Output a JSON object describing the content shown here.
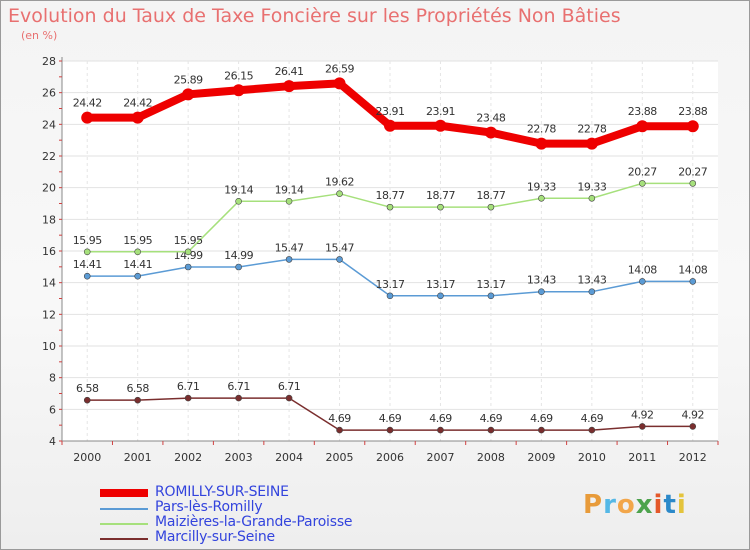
{
  "title": "Evolution du Taux de Taxe Foncière sur les Propriétés Non Bâties",
  "subtitle": "(en %)",
  "logo": "Proxiti",
  "chart_data": {
    "type": "line",
    "title": "Evolution du Taux de Taxe Foncière sur les Propriétés Non Bâties",
    "ylabel": "(en %)",
    "x": [
      "2000",
      "2001",
      "2002",
      "2003",
      "2004",
      "2005",
      "2006",
      "2007",
      "2008",
      "2009",
      "2010",
      "2011",
      "2012"
    ],
    "ylim": [
      4,
      28
    ],
    "yticks": [
      4,
      6,
      8,
      10,
      12,
      14,
      16,
      18,
      20,
      22,
      24,
      26,
      28
    ],
    "grid": true,
    "legend_position": "bottom-left",
    "series": [
      {
        "name": "ROMILLY-SUR-SEINE",
        "color": "#ee0000",
        "width": 8,
        "values": [
          24.42,
          24.42,
          25.89,
          26.15,
          26.41,
          26.59,
          23.91,
          23.91,
          23.48,
          22.78,
          22.78,
          23.88,
          23.88
        ],
        "labels": [
          "24.42",
          "24.42",
          "25.89",
          "26.15",
          "26.41",
          "26.59",
          "23.91",
          "23.91",
          "23.48",
          "22.78",
          "22.78",
          "23.88",
          "23.88"
        ]
      },
      {
        "name": "Pars-lès-Romilly",
        "color": "#5b9bd5",
        "width": 1.5,
        "values": [
          14.41,
          14.41,
          14.99,
          14.99,
          15.47,
          15.47,
          13.17,
          13.17,
          13.17,
          13.43,
          13.43,
          14.08,
          14.08
        ],
        "labels": [
          "14.41",
          "14.41",
          "14.99",
          "14.99",
          "15.47",
          "15.47",
          "13.17",
          "13.17",
          "13.17",
          "13.43",
          "13.43",
          "14.08",
          "14.08"
        ]
      },
      {
        "name": "Maizières-la-Grande-Paroisse",
        "color": "#a6e07c",
        "width": 1.5,
        "values": [
          15.95,
          15.95,
          15.95,
          19.14,
          19.14,
          19.62,
          18.77,
          18.77,
          18.77,
          19.33,
          19.33,
          20.27,
          20.27
        ],
        "labels": [
          "15.95",
          "15.95",
          "15.95",
          "19.14",
          "19.14",
          "19.62",
          "18.77",
          "18.77",
          "18.77",
          "19.33",
          "19.33",
          "20.27",
          "20.27"
        ]
      },
      {
        "name": "Marcilly-sur-Seine",
        "color": "#7a2e2e",
        "width": 1.5,
        "values": [
          6.58,
          6.58,
          6.71,
          6.71,
          6.71,
          4.69,
          4.69,
          4.69,
          4.69,
          4.69,
          4.69,
          4.92,
          4.92
        ],
        "labels": [
          "6.58",
          "6.58",
          "6.71",
          "6.71",
          "6.71",
          "4.69",
          "4.69",
          "4.69",
          "4.69",
          "4.69",
          "4.69",
          "4.92",
          "4.92"
        ]
      }
    ]
  }
}
